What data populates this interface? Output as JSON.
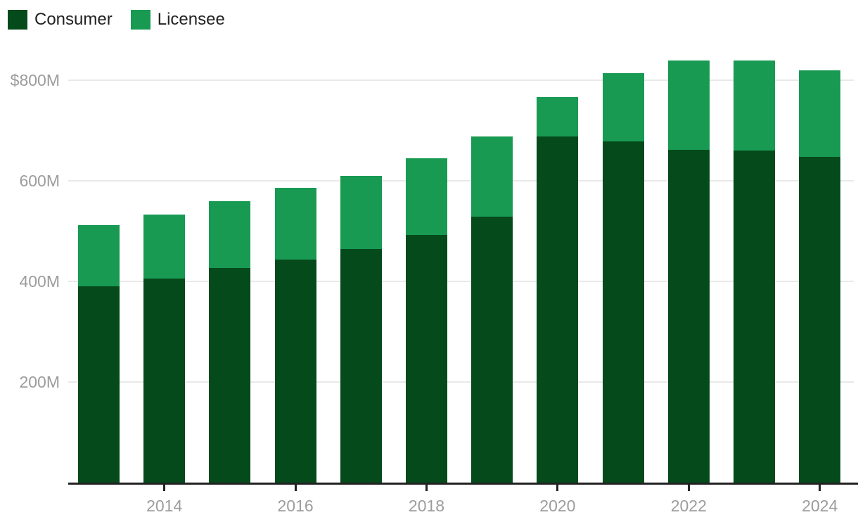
{
  "legend": {
    "items": [
      {
        "label": "Consumer",
        "color": "#054a1b"
      },
      {
        "label": "Licensee",
        "color": "#189a53"
      }
    ]
  },
  "colors": {
    "consumer": "#054a1b",
    "licensee": "#189a53",
    "gridline": "#e9e9e9",
    "axis_line": "#222222",
    "axis_text": "#9c9c9c",
    "legend_text": "#222222",
    "background": "#ffffff"
  },
  "chart_data": {
    "type": "bar",
    "stacked": true,
    "title": "",
    "xlabel": "",
    "ylabel": "",
    "unit": "USD millions",
    "grid": "horizontal",
    "legend_position": "top-left",
    "ylim": [
      0,
      860
    ],
    "categories": [
      2013,
      2014,
      2015,
      2016,
      2017,
      2018,
      2019,
      2020,
      2021,
      2022,
      2023,
      2024
    ],
    "series": [
      {
        "name": "Consumer",
        "color": "#054a1b",
        "values": [
          390,
          406,
          426,
          443,
          465,
          492,
          529,
          688,
          678,
          662,
          660,
          647
        ]
      },
      {
        "name": "Licensee",
        "color": "#189a53",
        "values": [
          122,
          127,
          133,
          143,
          145,
          153,
          159,
          79,
          136,
          177,
          179,
          173
        ]
      }
    ],
    "totals": [
      512,
      533,
      559,
      586,
      610,
      645,
      688,
      767,
      814,
      839,
      839,
      820
    ],
    "yticks": [
      {
        "value": 200,
        "label": "200M"
      },
      {
        "value": 400,
        "label": "400M"
      },
      {
        "value": 600,
        "label": "600M"
      },
      {
        "value": 800,
        "label": "$800M"
      }
    ],
    "xticks": [
      {
        "value": 2014,
        "label": "2014"
      },
      {
        "value": 2016,
        "label": "2016"
      },
      {
        "value": 2018,
        "label": "2018"
      },
      {
        "value": 2020,
        "label": "2020"
      },
      {
        "value": 2022,
        "label": "2022"
      },
      {
        "value": 2024,
        "label": "2024"
      }
    ]
  }
}
